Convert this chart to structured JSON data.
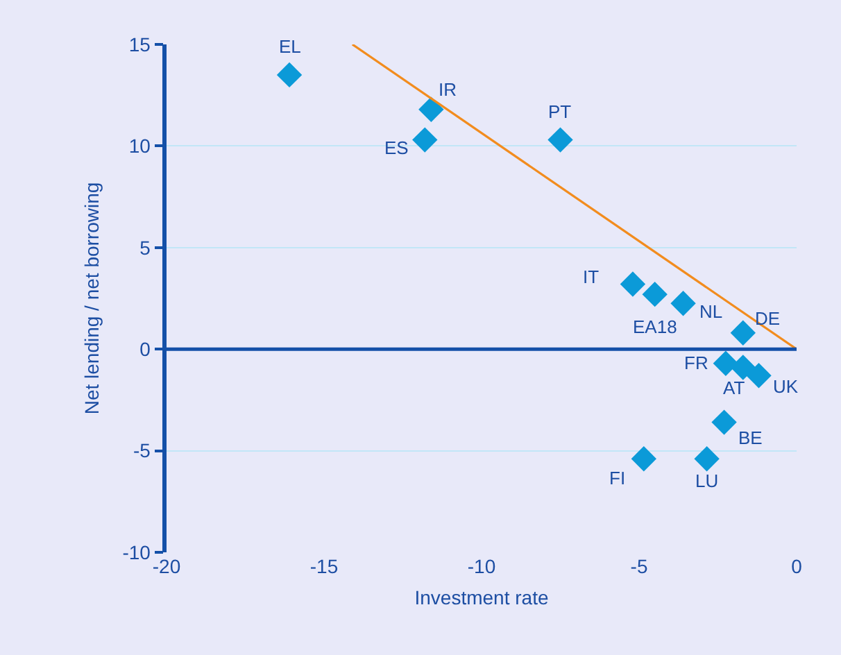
{
  "chart_data": {
    "type": "scatter",
    "xlabel": "Investment rate",
    "ylabel": "Net lending / net borrowing",
    "xlim": [
      -20,
      0
    ],
    "xticks": [
      -20,
      -15,
      -10,
      -5,
      0
    ],
    "ylim": [
      -10,
      15
    ],
    "yticks": [
      -10,
      -5,
      0,
      5,
      10,
      15
    ],
    "grid": "y",
    "marker": "diamond",
    "series": [
      {
        "color": "#0b9ad8",
        "x": [
          -16.1,
          -11.6,
          -11.8,
          -7.5,
          -5.2,
          -4.5,
          -3.6,
          -1.7,
          -2.25,
          -1.7,
          -1.2,
          -2.3,
          -4.85,
          -2.85
        ],
        "values": [
          13.5,
          11.8,
          10.3,
          10.3,
          3.2,
          2.7,
          2.25,
          0.8,
          -0.7,
          -0.9,
          -1.3,
          -3.6,
          -5.4,
          -5.4
        ]
      },
      {
        "type": "line",
        "color": "#f28c1e",
        "marker": "none",
        "x": [
          -14.1,
          0
        ],
        "values": [
          15,
          0
        ]
      }
    ],
    "ref_lines": [
      {
        "axis": "y",
        "value": 0,
        "color": "#1450a8"
      }
    ],
    "annotations": [
      {
        "text": "EL",
        "x": -16.1,
        "y": 13.5
      },
      {
        "text": "IR",
        "x": -11.6,
        "y": 11.8
      },
      {
        "text": "ES",
        "x": -11.8,
        "y": 10.3
      },
      {
        "text": "PT",
        "x": -7.5,
        "y": 10.3
      },
      {
        "text": "IT",
        "x": -5.2,
        "y": 3.2
      },
      {
        "text": "EA18",
        "x": -4.5,
        "y": 2.7
      },
      {
        "text": "NL",
        "x": -3.6,
        "y": 2.25
      },
      {
        "text": "DE",
        "x": -1.7,
        "y": 0.8
      },
      {
        "text": "FR",
        "x": -2.25,
        "y": -0.7
      },
      {
        "text": "AT",
        "x": -1.7,
        "y": -0.9
      },
      {
        "text": "UK",
        "x": -1.2,
        "y": -1.3
      },
      {
        "text": "BE",
        "x": -2.3,
        "y": -3.6
      },
      {
        "text": "FI",
        "x": -4.85,
        "y": -5.4
      },
      {
        "text": "LU",
        "x": -2.85,
        "y": -5.4
      }
    ]
  }
}
